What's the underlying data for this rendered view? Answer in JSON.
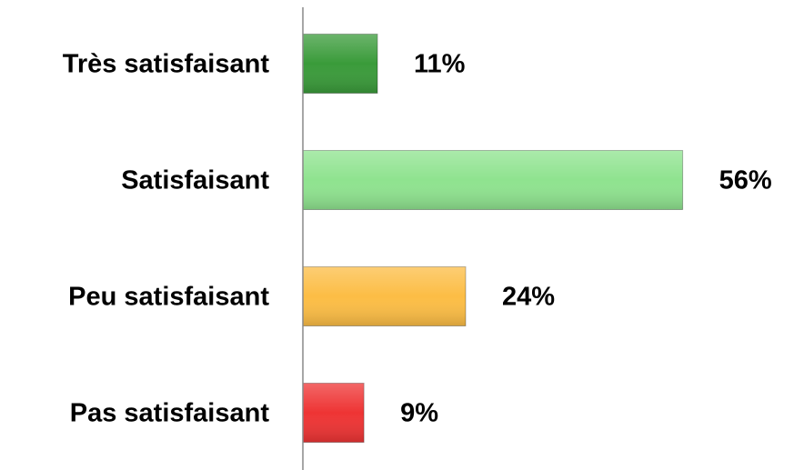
{
  "chart_data": {
    "type": "bar",
    "orientation": "horizontal",
    "categories": [
      "Très satisfaisant",
      "Satisfaisant",
      "Peu satisfaisant",
      "Pas satisfaisant"
    ],
    "values": [
      11,
      56,
      24,
      9
    ],
    "value_labels": [
      "11%",
      "56%",
      "24%",
      "9%"
    ],
    "colors": [
      "#3a9b3a",
      "#8fe38f",
      "#fcbd45",
      "#ee3434"
    ],
    "xlim": [
      0,
      70
    ]
  }
}
